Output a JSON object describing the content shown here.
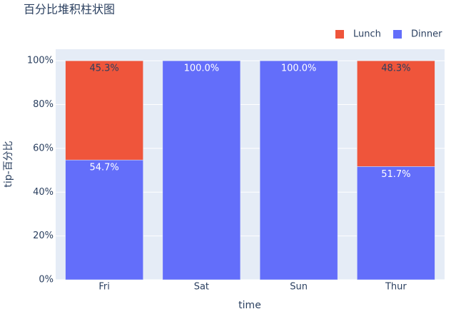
{
  "chart_data": {
    "type": "bar",
    "title": "百分比堆积柱状图",
    "x_label": "time",
    "y_label": "tip-百分比",
    "categories": [
      "Fri",
      "Sat",
      "Sun",
      "Thur"
    ],
    "series": [
      {
        "name": "Lunch",
        "color": "#ef553b",
        "values": [
          45.3,
          null,
          null,
          48.3
        ],
        "value_labels": [
          "45.3%",
          null,
          null,
          "48.3%"
        ]
      },
      {
        "name": "Dinner",
        "color": "#636efa",
        "values": [
          54.7,
          100,
          100,
          51.7
        ],
        "value_labels": [
          "54.7%",
          "100.0%",
          "100.0%",
          "51.7%"
        ]
      }
    ],
    "ylim": [
      0,
      105.26
    ],
    "yticks": [
      {
        "value": 0,
        "label": "0%"
      },
      {
        "value": 20,
        "label": "20%"
      },
      {
        "value": 40,
        "label": "40%"
      },
      {
        "value": 60,
        "label": "60%"
      },
      {
        "value": 80,
        "label": "80%"
      },
      {
        "value": 100,
        "label": "100%"
      }
    ],
    "grid": true,
    "legend": "top-right"
  }
}
